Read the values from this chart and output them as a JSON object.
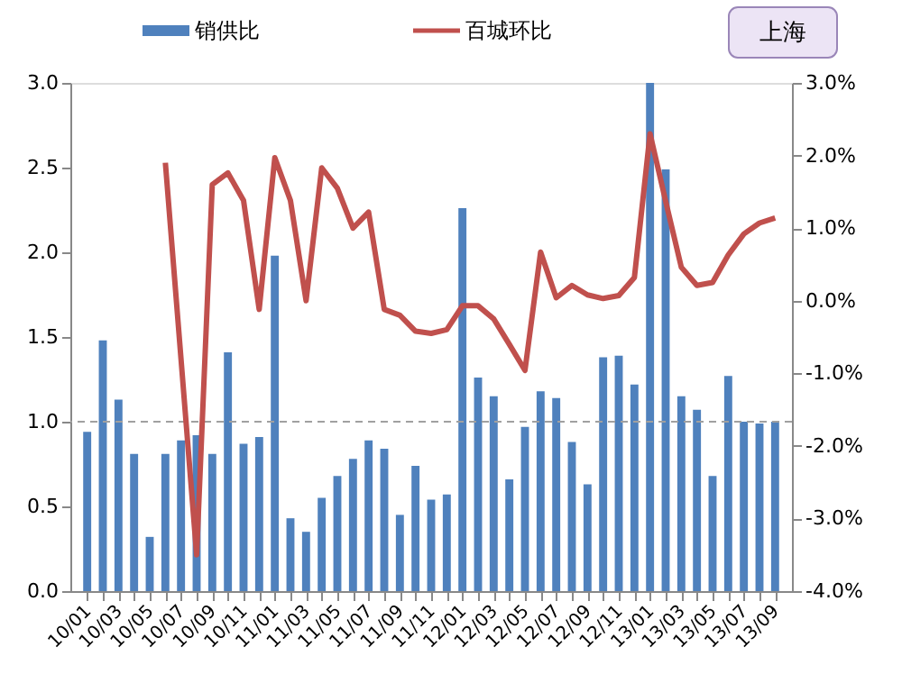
{
  "chart_data": {
    "type": "bar",
    "categories": [
      "10/01",
      null,
      "10/03",
      null,
      "10/05",
      null,
      "10/07",
      null,
      "10/09",
      null,
      "10/11",
      null,
      "11/01",
      null,
      "11/03",
      null,
      "11/05",
      null,
      "11/07",
      null,
      "11/09",
      null,
      "11/11",
      null,
      "12/01",
      null,
      "12/03",
      null,
      "12/05",
      null,
      "12/07",
      null,
      "12/09",
      null,
      "12/11",
      null,
      "13/01",
      null,
      "13/03",
      null,
      "13/05",
      null,
      "13/07",
      null,
      "13/09"
    ],
    "series": [
      {
        "name": "销供比",
        "color": "#4f81bd",
        "values": [
          0.94,
          1.48,
          1.13,
          0.81,
          0.32,
          0.81,
          0.89,
          0.92,
          0.81,
          1.41,
          0.87,
          0.91,
          1.98,
          0.43,
          0.35,
          0.55,
          0.68,
          0.78,
          0.89,
          0.84,
          0.45,
          0.74,
          0.54,
          0.57,
          2.26,
          1.26,
          1.15,
          0.66,
          0.97,
          1.18,
          1.14,
          0.88,
          0.63,
          1.38,
          1.39,
          1.22,
          3.0,
          2.49,
          1.15,
          1.07,
          0.68,
          1.27,
          1.0,
          0.99,
          1.0
        ]
      },
      {
        "name": "百城环比",
        "type": "line",
        "axis": "y2",
        "color": "#c0504d",
        "values": [
          null,
          null,
          null,
          null,
          null,
          1.9,
          -0.8,
          -3.5,
          1.6,
          1.76,
          1.38,
          -0.12,
          1.97,
          1.38,
          0.0,
          1.83,
          1.55,
          1.0,
          1.22,
          -0.12,
          -0.2,
          -0.42,
          -0.45,
          -0.4,
          -0.07,
          -0.07,
          -0.25,
          -0.6,
          -0.96,
          0.67,
          0.04,
          0.21,
          0.08,
          0.03,
          0.07,
          0.32,
          2.3,
          1.37,
          0.46,
          0.21,
          0.25,
          0.63,
          0.92,
          1.07,
          1.14
        ]
      }
    ],
    "ylim": [
      0,
      3
    ],
    "yticks": [
      {
        "value": 0,
        "label": "0.0"
      },
      {
        "value": 0.5,
        "label": "0.5"
      },
      {
        "value": 1,
        "label": "1.0"
      },
      {
        "value": 1.5,
        "label": "1.5"
      },
      {
        "value": 2,
        "label": "2.0"
      },
      {
        "value": 2.5,
        "label": "2.5"
      },
      {
        "value": 3,
        "label": "3.0"
      }
    ],
    "y2lim": [
      -4,
      3
    ],
    "y2ticks": [
      {
        "value": -4,
        "label": "-4.0%"
      },
      {
        "value": -3,
        "label": "-3.0%"
      },
      {
        "value": -2,
        "label": "-2.0%"
      },
      {
        "value": -1,
        "label": "-1.0%"
      },
      {
        "value": 0,
        "label": "0.0%"
      },
      {
        "value": 1,
        "label": "1.0%"
      },
      {
        "value": 2,
        "label": "2.0%"
      },
      {
        "value": 3,
        "label": "3.0%"
      }
    ],
    "ref_lines": [
      {
        "axis": "y",
        "value": 1.0,
        "color": "#a0a0a0",
        "line_style": "dashed"
      }
    ],
    "annotations": [
      "上海"
    ],
    "legend": "top",
    "grid": false
  }
}
